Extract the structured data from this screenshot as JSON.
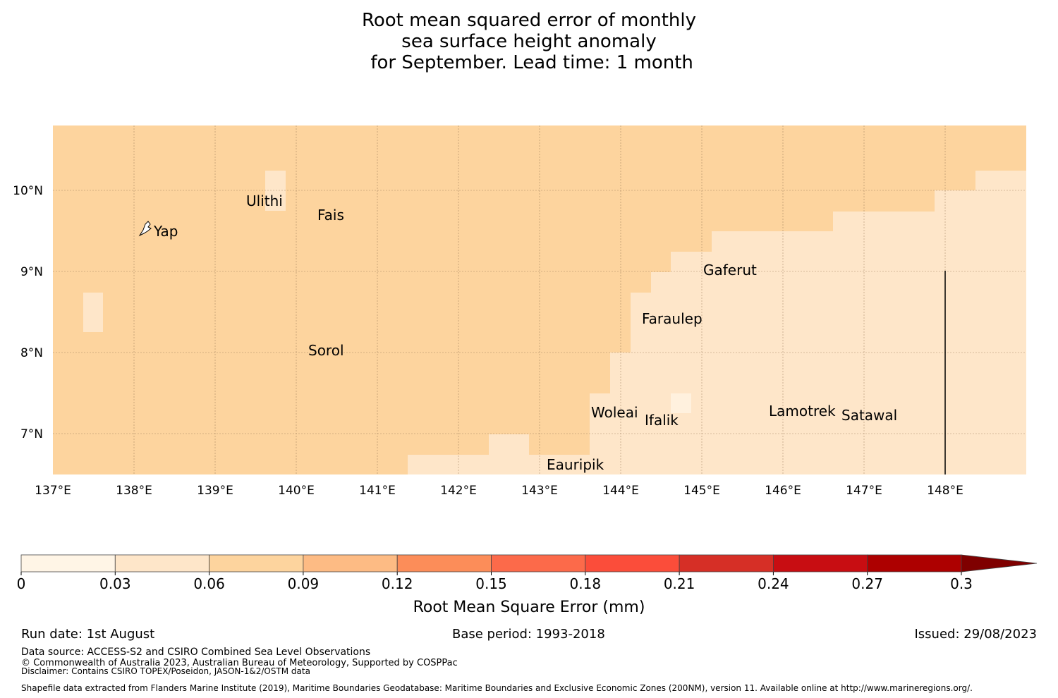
{
  "title": {
    "line1": "Root mean squared error of monthly",
    "line2": "sea surface height anomaly",
    "line3": " for September. Lead time: 1 month"
  },
  "map": {
    "lon_labels": [
      "137°E",
      "138°E",
      "139°E",
      "140°E",
      "141°E",
      "142°E",
      "143°E",
      "144°E",
      "145°E",
      "146°E",
      "147°E",
      "148°E"
    ],
    "lat_labels": [
      "10°N",
      "9°N",
      "8°N",
      "7°N"
    ],
    "places": [
      {
        "name": "Yap"
      },
      {
        "name": "Ulithi"
      },
      {
        "name": "Fais"
      },
      {
        "name": "Gaferut"
      },
      {
        "name": "Faraulep"
      },
      {
        "name": "Sorol"
      },
      {
        "name": "Woleai"
      },
      {
        "name": "Ifalik"
      },
      {
        "name": "Lamotrek"
      },
      {
        "name": "Satawal"
      },
      {
        "name": "Eauripik"
      }
    ],
    "colors": {
      "low": "#fee6c9",
      "mid": "#fdd49e"
    }
  },
  "colorbar": {
    "ticks": [
      "0",
      "0.03",
      "0.06",
      "0.09",
      "0.12",
      "0.15",
      "0.18",
      "0.21",
      "0.24",
      "0.27",
      "0.3"
    ],
    "colors": [
      "#fff5e6",
      "#fee6c9",
      "#fdd49e",
      "#fdbb84",
      "#fc8d59",
      "#fc6a4a",
      "#fb4d3a",
      "#d62f26",
      "#c80d12",
      "#ad0000",
      "#7f0000"
    ],
    "label": "Root Mean Square Error (mm)"
  },
  "footer": {
    "run_date": "Run date: 1st August",
    "base_period": "Base period: 1993-2018",
    "issued": "Issued: 29/08/2023",
    "data_source": "Data source: ACCESS-S2 and CSIRO Combined Sea Level Observations",
    "copyright": "© Commonwealth of Australia 2023, Australian Bureau of Meteorology, Supported by COSPPac",
    "disclaimer": "Disclaimer: Contains CSIRO TOPEX/Poseidon, JASON-1&2/OSTM data",
    "shapefile": "Shapefile data extracted from Flanders Marine Institute (2019), Maritime Boundaries Geodatabase: Maritime Boundaries and Exclusive Economic Zones (200NM), version 11. Available online at http://www.marineregions.org/."
  }
}
